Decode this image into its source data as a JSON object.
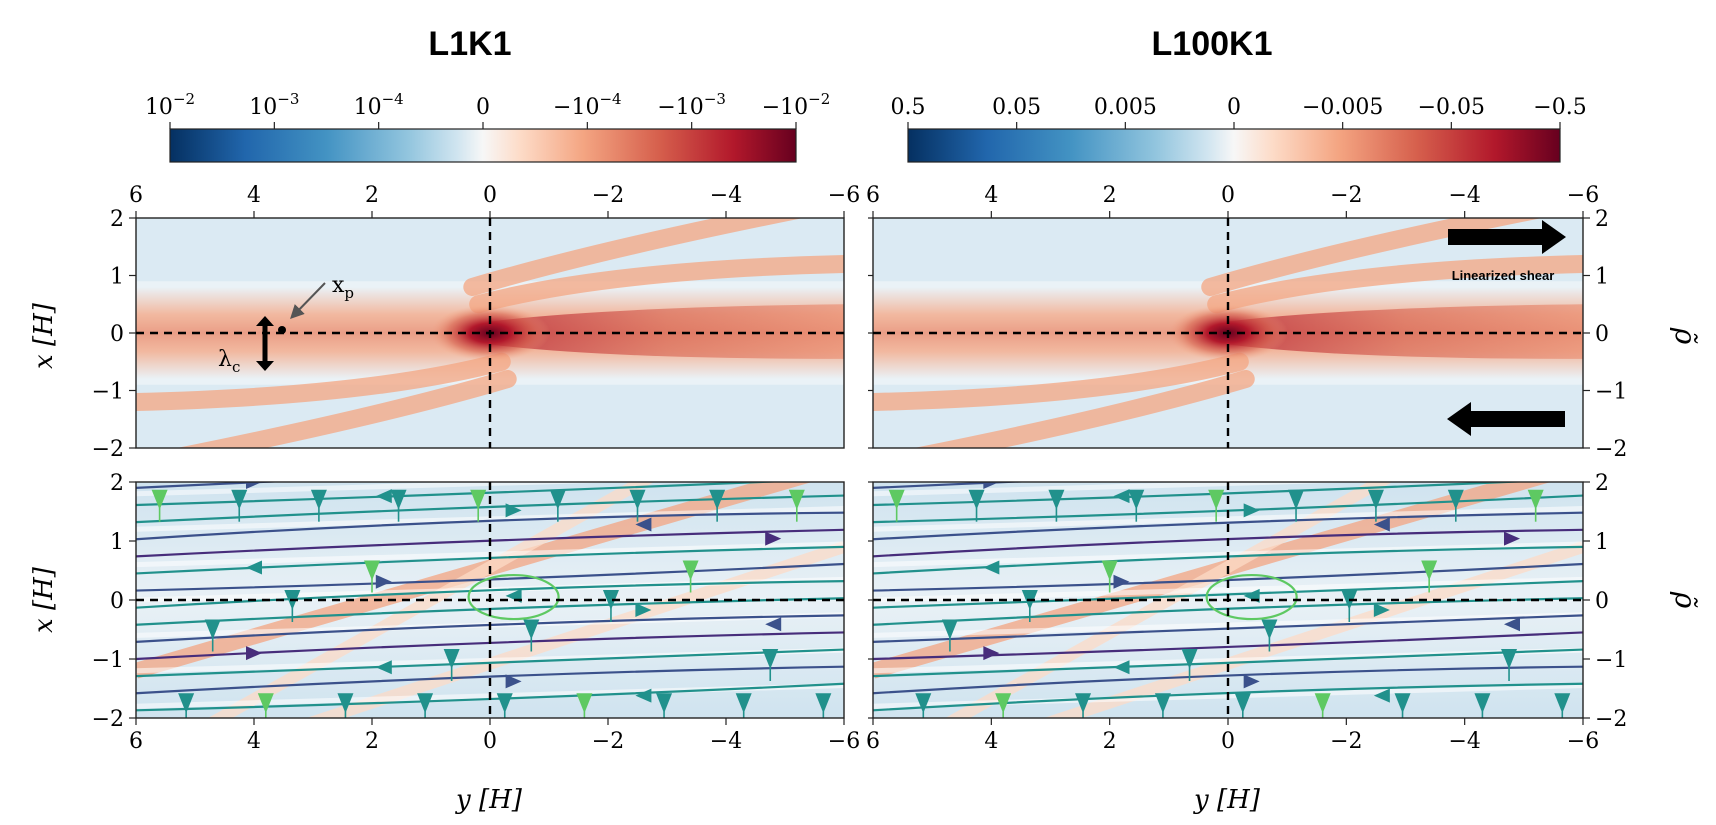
{
  "chart_data": [
    {
      "type": "heatmap",
      "title": "L1K1",
      "colorbar": {
        "ticks": [
          "10^{-2}",
          "10^{-3}",
          "10^{-4}",
          "0",
          "-10^{-4}",
          "-10^{-3}",
          "-10^{-2}"
        ],
        "scale": "symlog",
        "colormap": "RdBu_r (diverging, reversed)"
      },
      "top_panel": {
        "ylabel": "x [H]",
        "xlim": [
          6,
          -6
        ],
        "ylim": [
          -2,
          2
        ],
        "xticks": [
          "6",
          "4",
          "2",
          "0",
          "-2",
          "-4",
          "-6"
        ],
        "yticks": [
          "2",
          "1",
          "0",
          "-1",
          "-2"
        ],
        "annotations": [
          "xp",
          "λc"
        ],
        "note": "Density perturbation: negative wake along x=0 for y<0, oblique spiral arms"
      },
      "bottom_panel": {
        "ylabel": "x [H]",
        "xlabel": "y [H]",
        "xlim": [
          6,
          -6
        ],
        "ylim": [
          -2,
          2
        ],
        "xticks": [
          "6",
          "4",
          "2",
          "0",
          "-2",
          "-4",
          "-6"
        ],
        "yticks": [
          "2",
          "1",
          "0",
          "-1",
          "-2"
        ],
        "overlay": "streamlines"
      }
    },
    {
      "type": "heatmap",
      "title": "L100K1",
      "colorbar": {
        "ticks": [
          "0.5",
          "0.05",
          "0.005",
          "0",
          "-0.005",
          "-0.05",
          "-0.5"
        ],
        "scale": "symlog",
        "colormap": "RdBu_r (diverging, reversed)"
      },
      "top_panel": {
        "ylabel_right": "ρ̃",
        "xlim": [
          6,
          -6
        ],
        "ylim": [
          -2,
          2
        ],
        "xticks": [
          "6",
          "4",
          "2",
          "0",
          "-2",
          "-4",
          "-6"
        ],
        "yticks": [
          "2",
          "1",
          "0",
          "-1",
          "-2"
        ],
        "annotations": [
          "Linearized shear"
        ]
      },
      "bottom_panel": {
        "ylabel_right": "ρ̃",
        "xlabel": "y [H]",
        "xlim": [
          6,
          -6
        ],
        "ylim": [
          -2,
          2
        ],
        "xticks": [
          "6",
          "4",
          "2",
          "0",
          "-2",
          "-4",
          "-6"
        ],
        "yticks": [
          "2",
          "1",
          "0",
          "-1",
          "-2"
        ],
        "overlay": "streamlines"
      }
    }
  ],
  "labels": {
    "title_left": "L1K1",
    "title_right": "L100K1",
    "ylabel": "x [H]",
    "xlabel": "y [H]",
    "right_label": "ρ̃",
    "xp": "x",
    "xp_sub": "p",
    "lambda": "λ",
    "lambda_sub": "c",
    "shear": "Linearized shear"
  },
  "colors": {
    "neg_deep": "#67001f",
    "neg_mid": "#d6604d",
    "neg_light": "#fddbc7",
    "zero": "#f7f7f7",
    "pos_light": "#d1e5f0",
    "pos_mid": "#4393c3",
    "pos_deep": "#053061",
    "stream_a": "#3b518b",
    "stream_b": "#21918c",
    "stream_c": "#5ec962",
    "stream_d": "#472d7b"
  }
}
